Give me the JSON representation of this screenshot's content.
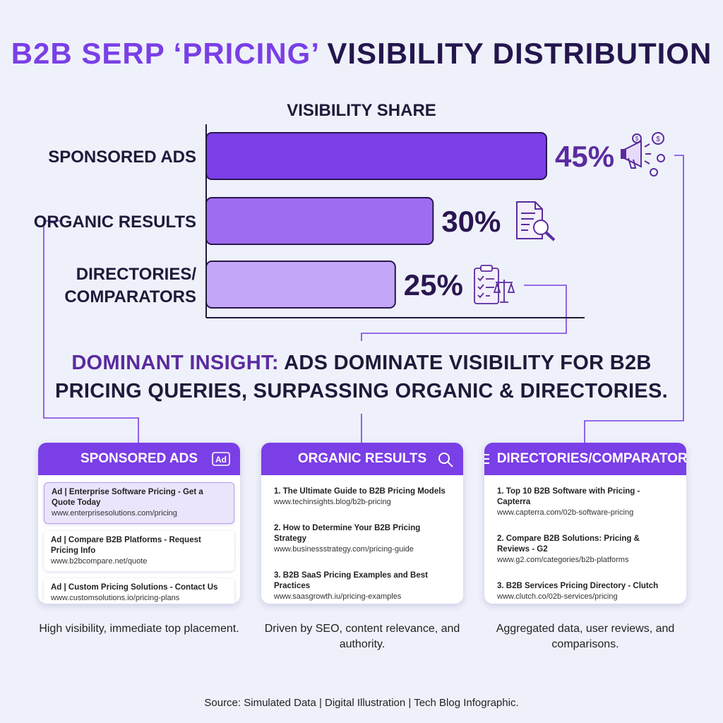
{
  "title": {
    "part1": "B2B SERP ‘PRICING’",
    "part2": "VISIBILITY DISTRIBUTION"
  },
  "chart_data": {
    "type": "bar",
    "orientation": "horizontal",
    "title": "VISIBILITY SHARE",
    "categories": [
      "SPONSORED ADS",
      "ORGANIC RESULTS",
      "DIRECTORIES/ COMPARATORS"
    ],
    "values": [
      45,
      30,
      25
    ],
    "value_labels": [
      "45%",
      "30%",
      "25%"
    ],
    "unit": "%",
    "xlim": [
      0,
      45
    ],
    "colors": [
      "#7a3fe6",
      "#9e6cf0",
      "#c3a6f7"
    ],
    "icons": [
      "megaphone-dollar-icon",
      "document-search-icon",
      "clipboard-scale-icon"
    ]
  },
  "insight": {
    "accent": "DOMINANT INSIGHT:",
    "text": "ADS DOMINATE VISIBILITY FOR B2B PRICING QUERIES, SURPASSING ORGANIC & DIRECTORIES."
  },
  "cards": {
    "ads": {
      "header": "SPONSORED ADS",
      "icon": "ad-badge-icon",
      "icon_text": "Ad",
      "results": [
        {
          "title": "Ad | Enterprise Software Pricing - Get a Quote Today",
          "url": "www.enterprisesolutions.com/pricing"
        },
        {
          "title": "Ad | Compare B2B Platforms - Request Pricing Info",
          "url": "www.b2bcompare.net/quote"
        },
        {
          "title": "Ad | Custom Pricing Solutions - Contact Us",
          "url": "www.customsolutions.io/pricing-plans"
        }
      ],
      "caption": "High visibility, immediate top placement."
    },
    "organic": {
      "header": "ORGANIC RESULTS",
      "icon": "search-icon",
      "results": [
        {
          "title": "1. The Ultimate Guide to B2B Pricing Models",
          "url": "www.techinsights.blog/b2b-pricing"
        },
        {
          "title": "2. How to Determine Your B2B Pricing Strategy",
          "url": "www.businessstrategy.com/pricing-guide"
        },
        {
          "title": "3. B2B SaaS Pricing Examples and Best Practices",
          "url": "www.saasgrowth.iu/pricing-examples"
        }
      ],
      "caption": "Driven by SEO, content relevance, and authority."
    },
    "directories": {
      "header": "DIRECTORIES/COMPARATORS",
      "icon": "list-icon",
      "results": [
        {
          "title": "1. Top 10 B2B Software with Pricing - Capterra",
          "url": "www.capterra.com/02b-software-pricing"
        },
        {
          "title": "2. Compare B2B Solutions: Pricing & Reviews - G2",
          "url": "www.g2.com/categories/b2b-platforms"
        },
        {
          "title": "3. B2B Services Pricing Directory - Clutch",
          "url": "www.clutch.co/02b-services/pricing"
        }
      ],
      "caption": "Aggregated data, user reviews, and comparisons."
    }
  },
  "source": "Source: Simulated Data | Digital Illustration | Tech Blog Infographic."
}
